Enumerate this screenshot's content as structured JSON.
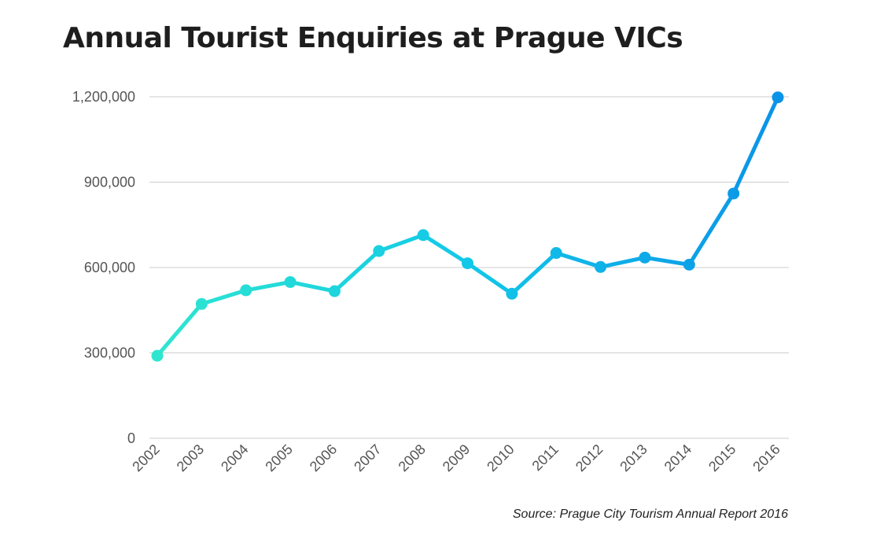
{
  "chart_data": {
    "type": "line",
    "title": "Annual Tourist Enquiries at Prague VICs",
    "xlabel": "",
    "ylabel": "",
    "categories": [
      "2002",
      "2003",
      "2004",
      "2005",
      "2006",
      "2007",
      "2008",
      "2009",
      "2010",
      "2011",
      "2012",
      "2013",
      "2014",
      "2015",
      "2016"
    ],
    "values": [
      290000,
      472000,
      520000,
      549000,
      517000,
      658000,
      714000,
      615000,
      508000,
      651000,
      602000,
      635000,
      610000,
      860000,
      1198000
    ],
    "ylim": [
      0,
      1200000
    ],
    "yticks": [
      0,
      300000,
      600000,
      900000,
      1200000
    ],
    "ytick_labels": [
      "0",
      "300,000",
      "600,000",
      "900,000",
      "1,200,000"
    ],
    "grid": "horizontal",
    "legend": "none",
    "colors": {
      "start": "#2ee6d0",
      "mid": "#12c8e8",
      "end": "#0b93e8",
      "grid": "#cccccc"
    }
  },
  "source_note": "Source: Prague City Tourism Annual Report 2016"
}
